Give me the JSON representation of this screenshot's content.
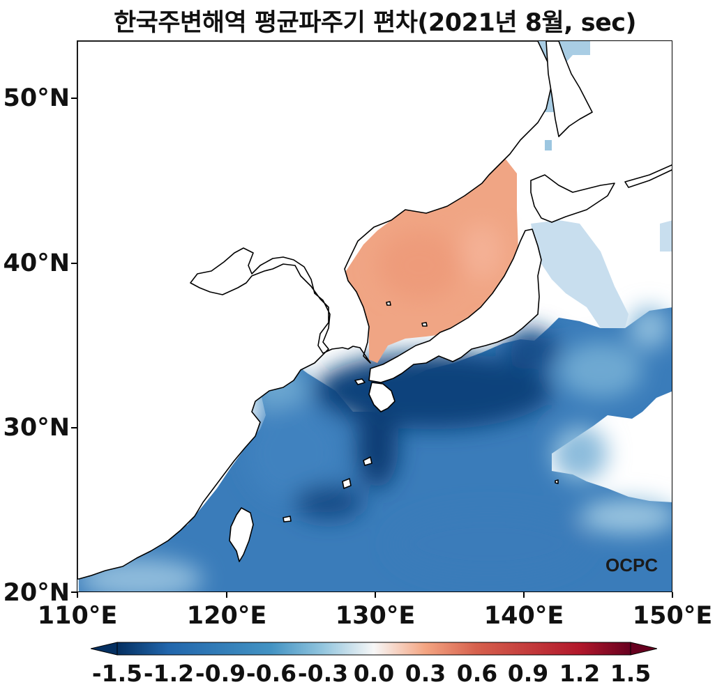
{
  "title": "한국주변해역 평균파주기 편차(2021년 8월, sec)",
  "y_axis": {
    "ticks": [
      {
        "label": "50°N",
        "value": 50
      },
      {
        "label": "40°N",
        "value": 40
      },
      {
        "label": "30°N",
        "value": 30
      },
      {
        "label": "20°N",
        "value": 20
      }
    ]
  },
  "x_axis": {
    "ticks": [
      {
        "label": "110°E",
        "value": 110
      },
      {
        "label": "120°E",
        "value": 120
      },
      {
        "label": "130°E",
        "value": 130
      },
      {
        "label": "140°E",
        "value": 140
      },
      {
        "label": "150°E",
        "value": 150
      }
    ]
  },
  "colorbar": {
    "labels": [
      "-1.5",
      "-1.2",
      "-0.9",
      "-0.6",
      "-0.3",
      "0.0",
      "0.3",
      "0.6",
      "0.9",
      "1.2",
      "1.5"
    ],
    "min": -1.5,
    "max": 1.5,
    "colormap": "RdBu_r",
    "extend": "both"
  },
  "logo": {
    "text": "OCPC"
  },
  "colors": {
    "negative_strong": "#0b3a6e",
    "negative_mid": "#2f6fb0",
    "negative_weak": "#9cc6e0",
    "neutral": "#f7f7f7",
    "positive_weak": "#f0a585",
    "positive_strong": "#8a0c25"
  },
  "extent": {
    "lon_min": 110,
    "lon_max": 150,
    "lat_min": 20,
    "lat_max": 53.3
  }
}
